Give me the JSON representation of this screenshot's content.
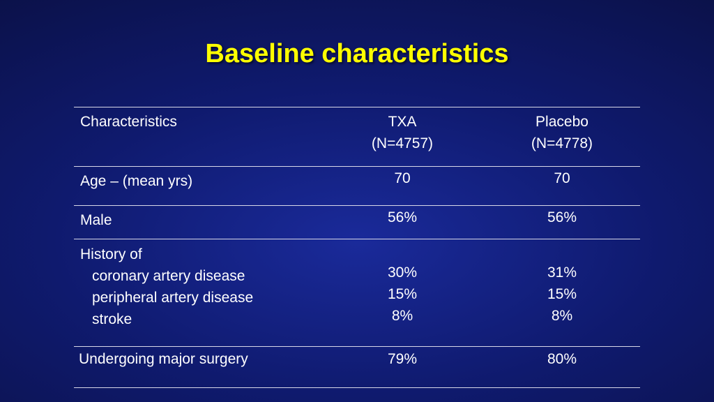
{
  "title": "Baseline characteristics",
  "table": {
    "header": {
      "label": "Characteristics",
      "col1": {
        "name": "TXA",
        "n": "(N=4757)"
      },
      "col2": {
        "name": "Placebo",
        "n": "(N=4778)"
      }
    },
    "rows": [
      {
        "label": "Age – (mean yrs)",
        "col1": "70",
        "col2": "70"
      },
      {
        "label": "Male",
        "col1": "56%",
        "col2": "56%"
      },
      {
        "label": "History of",
        "sub": [
          {
            "label": "coronary artery disease",
            "col1": "30%",
            "col2": "31%"
          },
          {
            "label": "peripheral artery disease",
            "col1": "15%",
            "col2": "15%"
          },
          {
            "label": "stroke",
            "col1": "8%",
            "col2": "8%"
          }
        ]
      },
      {
        "label": "Undergoing major surgery",
        "col1": "79%",
        "col2": "80%"
      }
    ]
  }
}
